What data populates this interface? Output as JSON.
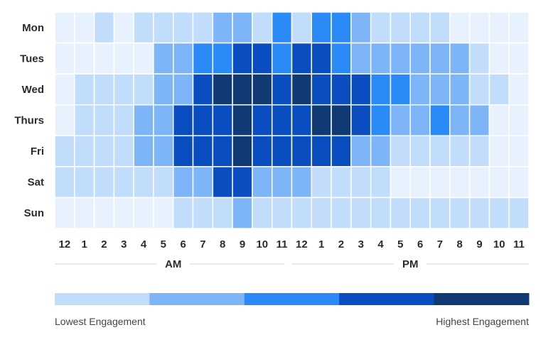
{
  "chart_data": {
    "type": "heatmap",
    "title": "",
    "rows": [
      "Mon",
      "Tues",
      "Wed",
      "Thurs",
      "Fri",
      "Sat",
      "Sun"
    ],
    "columns": [
      "12",
      "1",
      "2",
      "3",
      "4",
      "5",
      "6",
      "7",
      "8",
      "9",
      "10",
      "11",
      "12",
      "1",
      "2",
      "3",
      "4",
      "5",
      "6",
      "7",
      "8",
      "9",
      "10",
      "11"
    ],
    "periods": [
      {
        "label": "AM",
        "start_col": 0,
        "end_col": 11
      },
      {
        "label": "PM",
        "start_col": 12,
        "end_col": 23
      }
    ],
    "scale_levels": 6,
    "values": [
      [
        0,
        0,
        1,
        0,
        1,
        1,
        1,
        1,
        2,
        2,
        1,
        3,
        1,
        3,
        3,
        2,
        1,
        1,
        1,
        1,
        0,
        0,
        0,
        0
      ],
      [
        0,
        0,
        0,
        0,
        0,
        2,
        2,
        3,
        3,
        4,
        4,
        3,
        4,
        4,
        3,
        2,
        2,
        2,
        2,
        2,
        2,
        1,
        0,
        0
      ],
      [
        0,
        1,
        1,
        1,
        1,
        2,
        2,
        4,
        5,
        5,
        5,
        4,
        5,
        4,
        4,
        4,
        3,
        3,
        2,
        2,
        2,
        1,
        1,
        0
      ],
      [
        0,
        1,
        1,
        1,
        2,
        2,
        4,
        4,
        4,
        5,
        4,
        4,
        4,
        5,
        5,
        4,
        3,
        2,
        2,
        3,
        2,
        2,
        0,
        0
      ],
      [
        1,
        1,
        1,
        1,
        2,
        2,
        4,
        4,
        4,
        5,
        4,
        4,
        4,
        4,
        4,
        2,
        2,
        1,
        1,
        1,
        1,
        1,
        0,
        0
      ],
      [
        1,
        1,
        1,
        1,
        1,
        1,
        2,
        2,
        4,
        4,
        2,
        2,
        2,
        1,
        1,
        1,
        1,
        0,
        0,
        0,
        0,
        0,
        0,
        0
      ],
      [
        0,
        0,
        0,
        0,
        0,
        0,
        1,
        1,
        1,
        2,
        1,
        1,
        1,
        1,
        1,
        1,
        1,
        1,
        1,
        1,
        1,
        1,
        1,
        1
      ]
    ],
    "colors": [
      "#e8f2fe",
      "#c2dcfb",
      "#7db5f8",
      "#2a8af7",
      "#0a4dc1",
      "#113a75"
    ],
    "legend": {
      "colors": [
        "#c2dcfb",
        "#7db5f8",
        "#2a8af7",
        "#0a4dc1",
        "#113a75"
      ],
      "low_label": "Lowest Engagement",
      "high_label": "Highest Engagement",
      "placement": "bottom"
    }
  }
}
